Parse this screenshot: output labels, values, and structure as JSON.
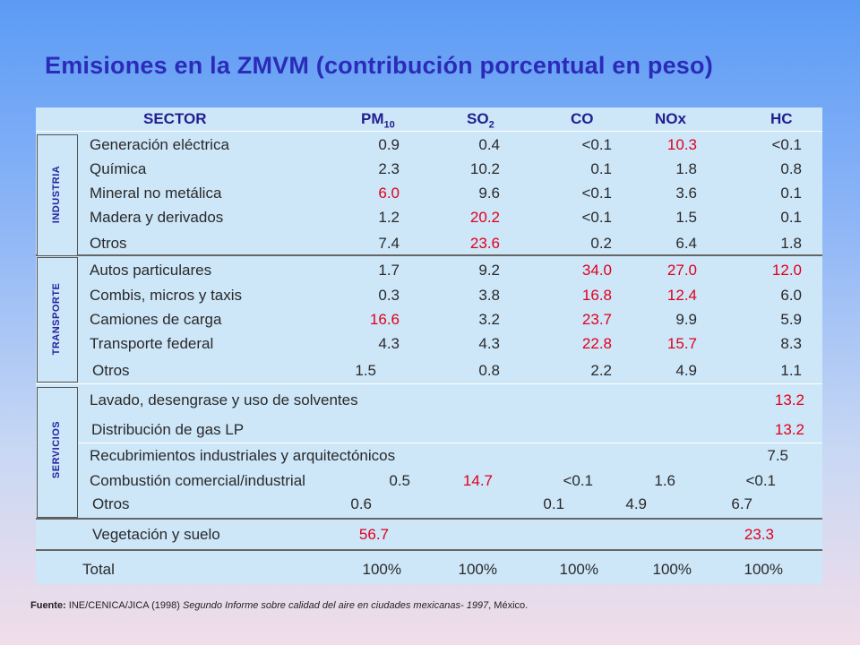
{
  "title": "Emisiones en la ZMVM (contribución porcentual en peso)",
  "header": {
    "sector": "SECTOR",
    "pm_main": "PM",
    "pm_sub": "10",
    "so_main": "SO",
    "so_sub": "2",
    "co": "CO",
    "nox": "NOx",
    "hc": "HC"
  },
  "groups": {
    "industria": "INDUSTRIA",
    "transporte": "TRANSPORTE",
    "servicios": "SERVICIOS"
  },
  "rows": {
    "gen": {
      "label": "Generación eléctrica",
      "pm": "0.9",
      "so": "0.4",
      "co": "<0.1",
      "nox": "10.3",
      "hc": "<0.1"
    },
    "qui": {
      "label": "Química",
      "pm": "2.3",
      "so": "10.2",
      "co": "0.1",
      "nox": "1.8",
      "hc": "0.8"
    },
    "min": {
      "label": "Mineral no metálica",
      "pm": "6.0",
      "so": "9.6",
      "co": "<0.1",
      "nox": "3.6",
      "hc": "0.1"
    },
    "mad": {
      "label": "Madera y derivados",
      "pm": "1.2",
      "so": "20.2",
      "co": "<0.1",
      "nox": "1.5",
      "hc": "0.1"
    },
    "otr1": {
      "label": "Otros",
      "pm": "7.4",
      "so": "23.6",
      "co": "0.2",
      "nox": "6.4",
      "hc": "1.8"
    },
    "aut": {
      "label": "Autos particulares",
      "pm": "1.7",
      "so": "9.2",
      "co": "34.0",
      "nox": "27.0",
      "hc": "12.0"
    },
    "com": {
      "label": "Combis, micros y taxis",
      "pm": "0.3",
      "so": "3.8",
      "co": "16.8",
      "nox": "12.4",
      "hc": "6.0"
    },
    "cam": {
      "label": "Camiones de carga",
      "pm": "16.6",
      "so": "3.2",
      "co": "23.7",
      "nox": "9.9",
      "hc": "5.9"
    },
    "tra": {
      "label": "Transporte federal",
      "pm": "4.3",
      "so": "4.3",
      "co": "22.8",
      "nox": "15.7",
      "hc": "8.3"
    },
    "otr2": {
      "label": "Otros",
      "pm": "1.5",
      "so": "0.8",
      "co": "2.2",
      "nox": "4.9",
      "hc": "1.1"
    },
    "lav": {
      "label": "Lavado, desengrase y uso de solventes",
      "hc": "13.2"
    },
    "dis": {
      "label": "Distribución de gas LP",
      "hc": "13.2"
    },
    "rec": {
      "label": "Recubrimientos industriales y arquitectónicos",
      "hc": "7.5"
    },
    "cmb": {
      "label": "Combustión comercial/industrial",
      "pm": "0.5",
      "so": "14.7",
      "co": "<0.1",
      "nox": "1.6",
      "hc": "<0.1"
    },
    "otr3": {
      "label": "Otros",
      "pm": "0.6",
      "co": "0.1",
      "nox": "4.9",
      "hc": "6.7"
    },
    "veg": {
      "label": "Vegetación y suelo",
      "pm": "56.7",
      "hc": "23.3"
    },
    "tot": {
      "label": "Total",
      "pm": "100%",
      "so": "100%",
      "co": "100%",
      "nox": "100%",
      "hc": "100%"
    }
  },
  "highlight_color": "#e0001a",
  "source": {
    "prefix": "Fuente:",
    "authors": "INE/CENICA/JICA (1998)",
    "work": "Segundo Informe sobre calidad del aire en ciudades mexicanas- 1997",
    "place": ", México."
  }
}
